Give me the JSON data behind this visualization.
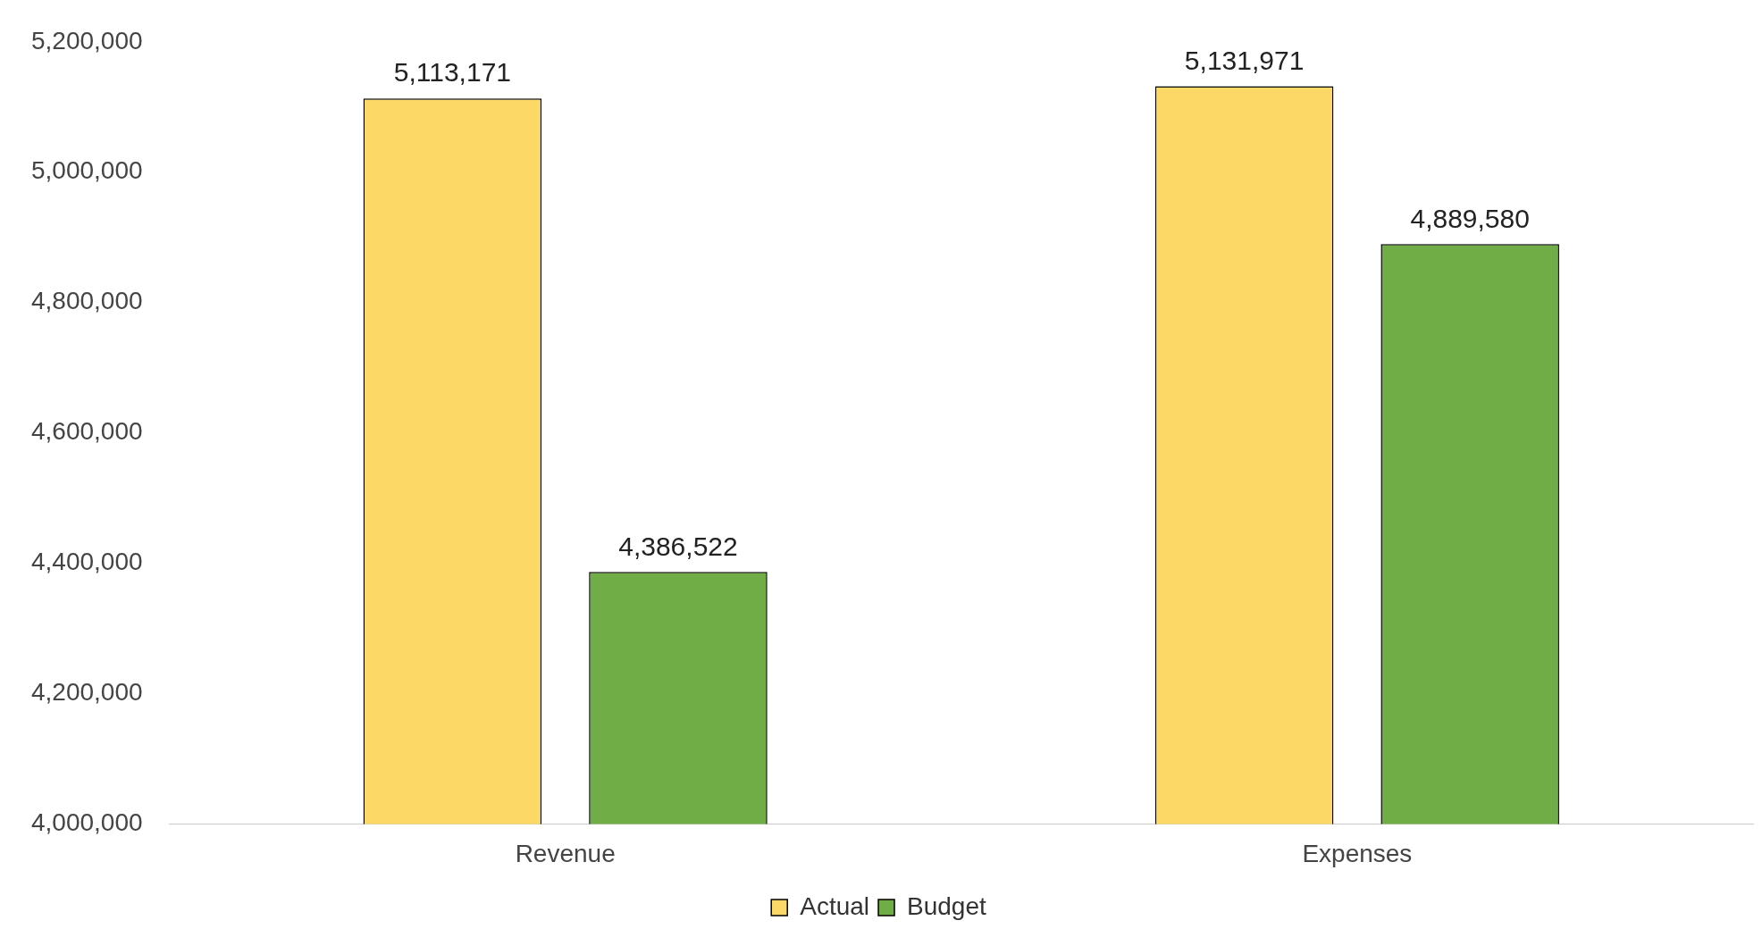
{
  "chart_data": {
    "type": "bar",
    "categories": [
      "Revenue",
      "Expenses"
    ],
    "series": [
      {
        "name": "Actual",
        "color": "#fcd867",
        "values": [
          5113171,
          5131971
        ],
        "value_labels": [
          "5,113,171",
          "5,131,971"
        ]
      },
      {
        "name": "Budget",
        "color": "#70ad47",
        "values": [
          4386522,
          4889580
        ],
        "value_labels": [
          "4,386,522",
          "4,889,580"
        ]
      }
    ],
    "ylim": [
      4000000,
      5200000
    ],
    "yticks": [
      {
        "value": 4000000,
        "label": "4,000,000"
      },
      {
        "value": 4200000,
        "label": "4,200,000"
      },
      {
        "value": 4400000,
        "label": "4,400,000"
      },
      {
        "value": 4600000,
        "label": "4,600,000"
      },
      {
        "value": 4800000,
        "label": "4,800,000"
      },
      {
        "value": 5000000,
        "label": "5,000,000"
      },
      {
        "value": 5200000,
        "label": "5,200,000"
      }
    ],
    "grid": false,
    "legend": "bottom"
  }
}
